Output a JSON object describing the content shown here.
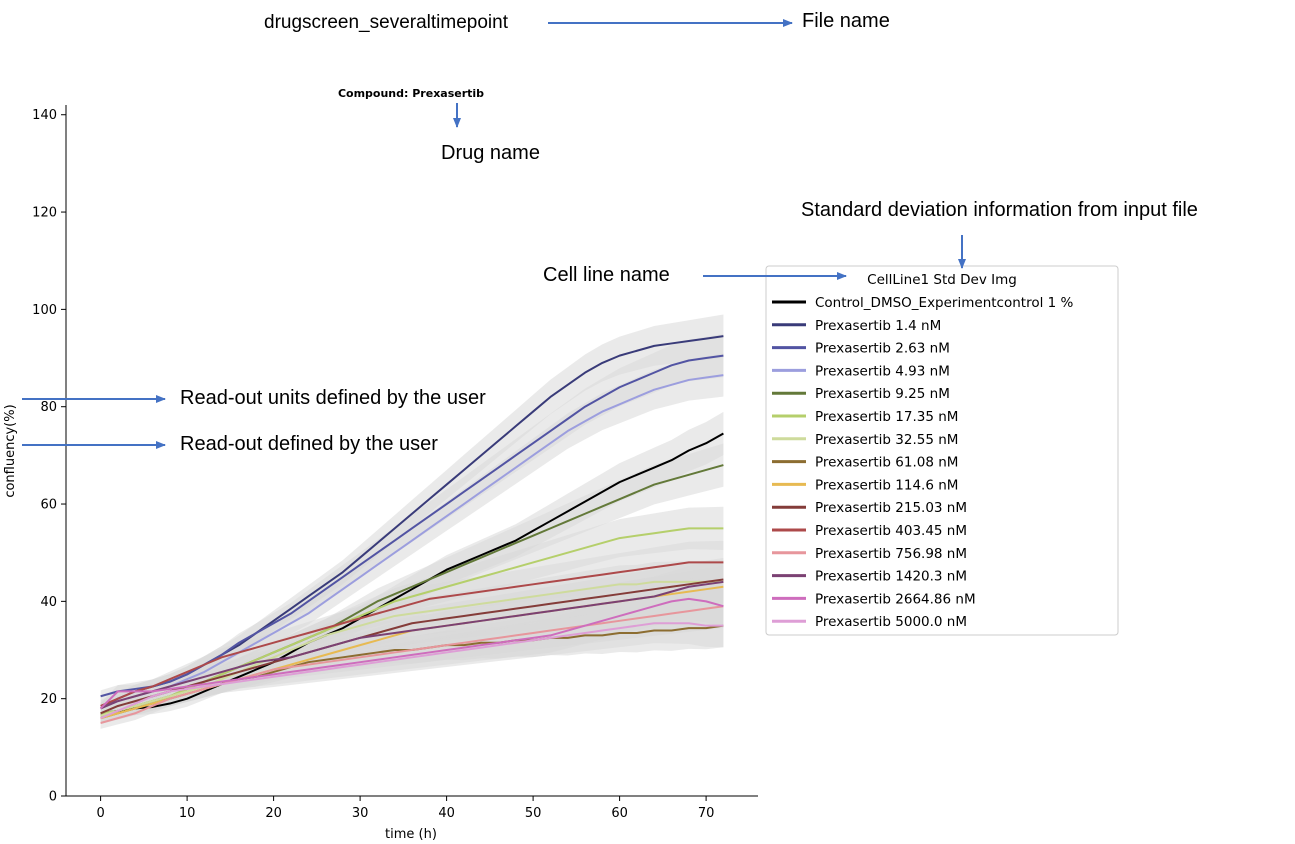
{
  "annotations": {
    "file_label": "drugscreen_severaltimepoint",
    "file_name_label": "File name",
    "drug_name_label": "Drug name",
    "std_dev_label": "Standard deviation information from input file",
    "cell_line_label": "Cell line name",
    "readout_units_label": "Read-out units defined by the user",
    "readout_label": "Read-out defined by the user",
    "arrow_color": "#4472c4"
  },
  "chart_data": {
    "type": "line",
    "title": "Compound: Prexasertib",
    "xlabel": "time (h)",
    "ylabel": "confluency(%)",
    "xlim": [
      -4,
      76
    ],
    "ylim": [
      0,
      142
    ],
    "xticks": [
      0,
      10,
      20,
      30,
      40,
      50,
      60,
      70
    ],
    "yticks": [
      0,
      20,
      40,
      60,
      80,
      100,
      120,
      140
    ],
    "legend_title": "CellLine1  Std Dev Img",
    "legend_position": "right",
    "std_band_color": "#d9d9d9",
    "x_start": 0,
    "x_step": 2,
    "series": [
      {
        "name": "Control_DMSO_Experimentcontrol 1 %",
        "color": "#000000",
        "values": [
          17,
          17.5,
          18,
          18.3,
          19,
          20,
          21.5,
          23,
          24.5,
          26,
          27.5,
          29.5,
          31.5,
          33,
          34.5,
          36.5,
          38.5,
          40.5,
          42.5,
          44.5,
          46.5,
          48,
          49.5,
          51,
          52.5,
          54.5,
          56.5,
          58.5,
          60.5,
          62.5,
          64.5,
          66,
          67.5,
          69,
          71,
          72.5,
          74.5
        ]
      },
      {
        "name": "Prexasertib 1.4 nM",
        "color": "#393b79",
        "values": [
          18,
          20,
          21.5,
          22.5,
          23.5,
          25,
          27,
          29,
          31,
          33.5,
          36,
          38.5,
          41,
          43.5,
          46,
          49,
          52,
          55,
          58,
          61,
          64,
          67,
          70,
          73,
          76,
          79,
          82,
          84.5,
          87,
          89,
          90.5,
          91.5,
          92.5,
          93,
          93.5,
          94,
          94.5
        ]
      },
      {
        "name": "Prexasertib 2.63 nM",
        "color": "#5254a3",
        "values": [
          20.5,
          21.5,
          22,
          22.5,
          23.5,
          25,
          27,
          29,
          31.5,
          33.5,
          35.5,
          37.5,
          40,
          42.5,
          45,
          47.5,
          50,
          52.5,
          55,
          57.5,
          60,
          62.5,
          65,
          67.5,
          70,
          72.5,
          75,
          77.5,
          80,
          82,
          84,
          85.5,
          87,
          88.5,
          89.5,
          90,
          90.5
        ]
      },
      {
        "name": "Prexasertib 4.93 nM",
        "color": "#9c9ede",
        "values": [
          18,
          19.5,
          20.5,
          21.5,
          22.5,
          24,
          25.5,
          27.5,
          29.5,
          31.5,
          33.5,
          35.5,
          37.5,
          40,
          42.5,
          45,
          47.5,
          50,
          52.5,
          55,
          57.5,
          60,
          62.5,
          65,
          67.5,
          70,
          72.5,
          75,
          77,
          79,
          80.5,
          82,
          83.5,
          84.5,
          85.5,
          86,
          86.5
        ]
      },
      {
        "name": "Prexasertib 9.25 nM",
        "color": "#637939",
        "values": [
          16.5,
          17.5,
          18.5,
          19.5,
          20.5,
          22,
          23.5,
          25,
          26.5,
          28,
          29.5,
          31,
          32.5,
          34,
          36,
          38,
          40,
          41.5,
          43,
          44.5,
          46,
          47.5,
          49,
          50.5,
          52,
          53.5,
          55,
          56.5,
          58,
          59.5,
          61,
          62.5,
          64,
          65,
          66,
          67,
          68
        ]
      },
      {
        "name": "Prexasertib 17.35 nM",
        "color": "#b5cf6b",
        "values": [
          17,
          17.5,
          18.5,
          19.5,
          20.5,
          22,
          23.5,
          25,
          26.5,
          28,
          29.5,
          31,
          32.5,
          34,
          35.5,
          37,
          38.5,
          40,
          41,
          42,
          43,
          44,
          45,
          46,
          47,
          48,
          49,
          50,
          51,
          52,
          53,
          53.5,
          54,
          54.5,
          55,
          55,
          55
        ]
      },
      {
        "name": "Prexasertib 32.55 nM",
        "color": "#cedb9c",
        "values": [
          16.5,
          17.5,
          18.5,
          19.5,
          20.5,
          21.5,
          22.5,
          24,
          25.5,
          27,
          28.5,
          30,
          31.5,
          33,
          34,
          35,
          36,
          37,
          37.5,
          38,
          38.5,
          39,
          39.5,
          40,
          40.5,
          41,
          41.5,
          42,
          42.5,
          43,
          43.5,
          43.5,
          44,
          44,
          44,
          44,
          44
        ]
      },
      {
        "name": "Prexasertib 61.08 nM",
        "color": "#8c6d31",
        "values": [
          16,
          17,
          18,
          19,
          20,
          21,
          22,
          23,
          24,
          24.5,
          25.5,
          26.5,
          27.5,
          28,
          28.5,
          29,
          29.5,
          30,
          30,
          30.5,
          31,
          31,
          31.5,
          31.5,
          32,
          32,
          32.5,
          32.5,
          33,
          33,
          33.5,
          33.5,
          34,
          34,
          34.5,
          34.5,
          35
        ]
      },
      {
        "name": "Prexasertib 114.6 nM",
        "color": "#e7ba52",
        "values": [
          16,
          17,
          18,
          19,
          20,
          21,
          22,
          23,
          24,
          25,
          26,
          27,
          28,
          29,
          30,
          31,
          32,
          33,
          34,
          34.5,
          35,
          35.5,
          36,
          36.5,
          37,
          37.5,
          38,
          38.5,
          39,
          39.5,
          40,
          40.5,
          41,
          41.5,
          42,
          42.5,
          43
        ]
      },
      {
        "name": "Prexasertib 215.03 nM",
        "color": "#843c39",
        "values": [
          17,
          18.5,
          19.5,
          20.5,
          21.5,
          22.5,
          23.5,
          24.5,
          25.5,
          26.5,
          27.5,
          28.5,
          29.5,
          30.5,
          31.5,
          32.5,
          33.5,
          34.5,
          35.5,
          36,
          36.5,
          37,
          37.5,
          38,
          38.5,
          39,
          39.5,
          40,
          40.5,
          41,
          41.5,
          42,
          42.5,
          43,
          43.5,
          44,
          44.5
        ]
      },
      {
        "name": "Prexasertib 403.45 nM",
        "color": "#ad494a",
        "values": [
          18.5,
          20,
          21.5,
          22.5,
          24,
          25.5,
          27,
          28.5,
          29.5,
          30.5,
          31.5,
          32.5,
          33.5,
          34.5,
          35.5,
          36.5,
          37.5,
          38.5,
          39.5,
          40.5,
          41,
          41.5,
          42,
          42.5,
          43,
          43.5,
          44,
          44.5,
          45,
          45.5,
          46,
          46.5,
          47,
          47.5,
          48,
          48,
          48
        ]
      },
      {
        "name": "Prexasertib 756.98 nM",
        "color": "#e7969c",
        "values": [
          15,
          16,
          17,
          18.5,
          20,
          21,
          22,
          23,
          24,
          25,
          26,
          26.5,
          27,
          27.5,
          28,
          28.5,
          29,
          29.5,
          30,
          30.5,
          31,
          31.5,
          32,
          32.5,
          33,
          33.5,
          34,
          34.5,
          35,
          35.5,
          36,
          36.5,
          37,
          37.5,
          38,
          38.5,
          39
        ]
      },
      {
        "name": "Prexasertib 1420.3 nM",
        "color": "#7b4173",
        "values": [
          18,
          19.5,
          20.5,
          21.5,
          22.5,
          23.5,
          24.5,
          25.5,
          26.5,
          27.5,
          28,
          28.5,
          29.5,
          30.5,
          31.5,
          32.5,
          33,
          33.5,
          34,
          34.5,
          35,
          35.5,
          36,
          36.5,
          37,
          37.5,
          38,
          38.5,
          39,
          39.5,
          40,
          40.5,
          41,
          42,
          43,
          43.5,
          44
        ]
      },
      {
        "name": "Prexasertib 2664.86 nM",
        "color": "#ce6dbd",
        "values": [
          18,
          21.5,
          21.5,
          21.5,
          22,
          22.5,
          23,
          23.5,
          24,
          24.5,
          25,
          25.5,
          26,
          26.5,
          27,
          27.5,
          28,
          28.5,
          29,
          29.5,
          30,
          30.5,
          31,
          31.5,
          32,
          32.5,
          33,
          34,
          35,
          36,
          37,
          38,
          39,
          40,
          40.5,
          40,
          39
        ]
      },
      {
        "name": "Prexasertib 5000.0 nM",
        "color": "#de9ed6",
        "values": [
          16,
          17.5,
          19,
          20.5,
          21.5,
          22,
          22.5,
          23,
          23.5,
          24,
          24.5,
          25,
          25.5,
          26,
          26.5,
          27,
          27.5,
          28,
          28.5,
          29,
          29.5,
          30,
          30.5,
          31,
          31.5,
          32,
          32.5,
          33,
          33.5,
          34,
          34.5,
          35,
          35.5,
          35.5,
          35.5,
          35,
          35
        ]
      }
    ]
  }
}
